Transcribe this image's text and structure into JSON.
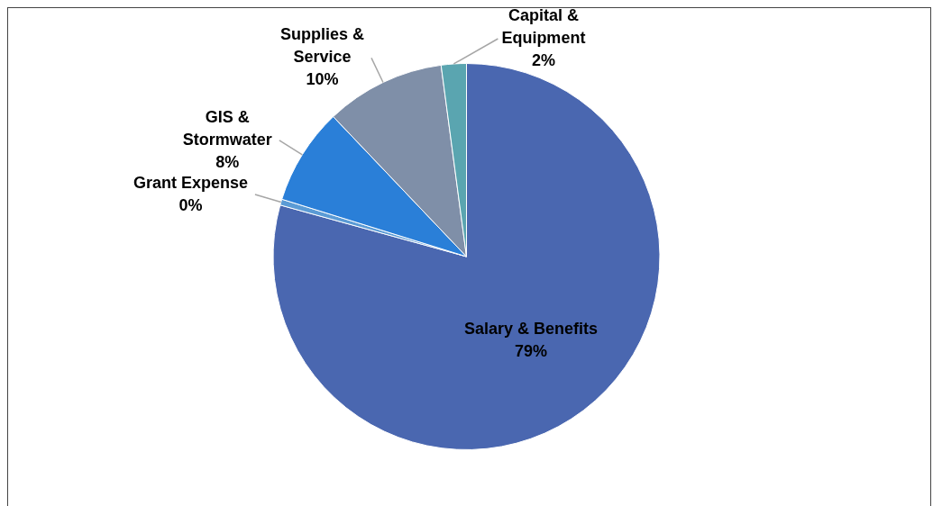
{
  "chart_data": {
    "type": "pie",
    "categories": [
      "Salary & Benefits",
      "Grant Expense",
      "GIS & Stormwater",
      "Supplies & Service",
      "Capital & Equipment"
    ],
    "values": [
      79.3,
      0.5,
      8.1,
      10.0,
      2.1
    ],
    "colors": [
      "#4a67b0",
      "#5b9bd5",
      "#2a7fd8",
      "#7f8fa8",
      "#5aa5b0"
    ],
    "value_labels": [
      "79%",
      "0%",
      "8%",
      "10%",
      "2%"
    ],
    "legend": false
  }
}
